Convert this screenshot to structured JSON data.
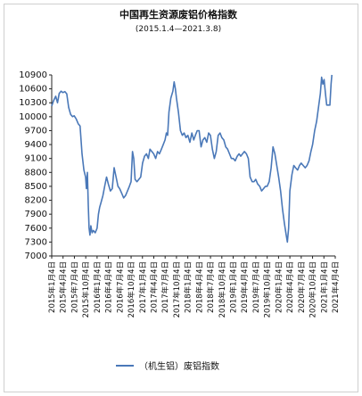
{
  "chart_data": {
    "type": "line",
    "title": "中国再生资源废铝价格指数",
    "subtitle": "(2015.1.4—2021.3.8)",
    "xlabel": "",
    "ylabel": "",
    "ylim": [
      7000,
      10900
    ],
    "yticks": [
      10900,
      10600,
      10300,
      10000,
      9700,
      9400,
      9100,
      8800,
      8500,
      8200,
      7900,
      7600,
      7300,
      7000
    ],
    "x_tick_labels": [
      "2015年1月4日",
      "2015年4月4日",
      "2015年7月4日",
      "2015年10月4日",
      "2016年1月4日",
      "2016年4月4日",
      "2016年7月4日",
      "2016年10月4日",
      "2017年1月4日",
      "2017年4月4日",
      "2017年7月4日",
      "2017年10月4日",
      "2018年1月4日",
      "2018年4月4日",
      "2018年7月4日",
      "2018年10月4日",
      "2019年1月4日",
      "2019年4月4日",
      "2019年7月4日",
      "2019年10月4日",
      "2020年1月4日",
      "2020年4月4日",
      "2020年7月4日",
      "2020年10月4日",
      "2021年1月4日",
      "2021年4月4日"
    ],
    "grid": false,
    "legend_position": "bottom",
    "series": [
      {
        "name": "（机生铝）废铝指数",
        "color": "#4a78b8",
        "points": [
          [
            "2015-01-04",
            10230
          ],
          [
            "2015-01-20",
            10350
          ],
          [
            "2015-02-05",
            10440
          ],
          [
            "2015-02-20",
            10300
          ],
          [
            "2015-03-05",
            10500
          ],
          [
            "2015-03-20",
            10550
          ],
          [
            "2015-04-04",
            10520
          ],
          [
            "2015-04-20",
            10540
          ],
          [
            "2015-05-05",
            10490
          ],
          [
            "2015-05-20",
            10200
          ],
          [
            "2015-06-05",
            10050
          ],
          [
            "2015-06-20",
            10000
          ],
          [
            "2015-07-04",
            10020
          ],
          [
            "2015-07-20",
            9950
          ],
          [
            "2015-08-05",
            9850
          ],
          [
            "2015-08-20",
            9800
          ],
          [
            "2015-09-05",
            9200
          ],
          [
            "2015-09-20",
            8850
          ],
          [
            "2015-10-04",
            8700
          ],
          [
            "2015-10-10",
            8450
          ],
          [
            "2015-10-18",
            8800
          ],
          [
            "2015-10-25",
            8100
          ],
          [
            "2015-11-01",
            7600
          ],
          [
            "2015-11-08",
            7450
          ],
          [
            "2015-11-15",
            7650
          ],
          [
            "2015-11-25",
            7500
          ],
          [
            "2015-12-05",
            7550
          ],
          [
            "2015-12-20",
            7500
          ],
          [
            "2016-01-04",
            7600
          ],
          [
            "2016-01-15",
            7900
          ],
          [
            "2016-01-25",
            8050
          ],
          [
            "2016-02-05",
            8150
          ],
          [
            "2016-02-20",
            8300
          ],
          [
            "2016-03-05",
            8500
          ],
          [
            "2016-03-20",
            8700
          ],
          [
            "2016-04-04",
            8550
          ],
          [
            "2016-04-20",
            8400
          ],
          [
            "2016-05-05",
            8450
          ],
          [
            "2016-05-20",
            8900
          ],
          [
            "2016-06-05",
            8700
          ],
          [
            "2016-06-20",
            8500
          ],
          [
            "2016-07-04",
            8450
          ],
          [
            "2016-07-20",
            8350
          ],
          [
            "2016-08-05",
            8250
          ],
          [
            "2016-08-20",
            8300
          ],
          [
            "2016-09-05",
            8400
          ],
          [
            "2016-09-20",
            8500
          ],
          [
            "2016-10-04",
            8600
          ],
          [
            "2016-10-15",
            9250
          ],
          [
            "2016-10-25",
            9100
          ],
          [
            "2016-11-05",
            8650
          ],
          [
            "2016-11-20",
            8600
          ],
          [
            "2016-12-05",
            8650
          ],
          [
            "2016-12-20",
            8700
          ],
          [
            "2017-01-04",
            9000
          ],
          [
            "2017-01-20",
            9150
          ],
          [
            "2017-02-05",
            9200
          ],
          [
            "2017-02-20",
            9100
          ],
          [
            "2017-03-05",
            9300
          ],
          [
            "2017-03-20",
            9250
          ],
          [
            "2017-04-04",
            9200
          ],
          [
            "2017-04-20",
            9100
          ],
          [
            "2017-05-05",
            9250
          ],
          [
            "2017-05-20",
            9200
          ],
          [
            "2017-06-05",
            9300
          ],
          [
            "2017-06-20",
            9400
          ],
          [
            "2017-07-04",
            9500
          ],
          [
            "2017-07-15",
            9650
          ],
          [
            "2017-07-25",
            9600
          ],
          [
            "2017-08-05",
            10100
          ],
          [
            "2017-08-20",
            10400
          ],
          [
            "2017-09-05",
            10550
          ],
          [
            "2017-09-15",
            10750
          ],
          [
            "2017-09-25",
            10600
          ],
          [
            "2017-10-04",
            10400
          ],
          [
            "2017-10-20",
            10100
          ],
          [
            "2017-11-05",
            9700
          ],
          [
            "2017-11-20",
            9600
          ],
          [
            "2017-12-05",
            9650
          ],
          [
            "2017-12-20",
            9550
          ],
          [
            "2018-01-04",
            9600
          ],
          [
            "2018-01-20",
            9450
          ],
          [
            "2018-02-05",
            9650
          ],
          [
            "2018-02-20",
            9500
          ],
          [
            "2018-03-05",
            9600
          ],
          [
            "2018-03-20",
            9700
          ],
          [
            "2018-04-04",
            9700
          ],
          [
            "2018-04-20",
            9350
          ],
          [
            "2018-05-05",
            9500
          ],
          [
            "2018-05-20",
            9550
          ],
          [
            "2018-06-05",
            9450
          ],
          [
            "2018-06-20",
            9650
          ],
          [
            "2018-07-04",
            9600
          ],
          [
            "2018-07-20",
            9300
          ],
          [
            "2018-08-05",
            9100
          ],
          [
            "2018-08-20",
            9250
          ],
          [
            "2018-09-05",
            9600
          ],
          [
            "2018-09-20",
            9650
          ],
          [
            "2018-10-04",
            9550
          ],
          [
            "2018-10-20",
            9500
          ],
          [
            "2018-11-05",
            9350
          ],
          [
            "2018-11-20",
            9300
          ],
          [
            "2018-12-05",
            9200
          ],
          [
            "2018-12-20",
            9100
          ],
          [
            "2019-01-04",
            9100
          ],
          [
            "2019-01-20",
            9050
          ],
          [
            "2019-02-05",
            9150
          ],
          [
            "2019-02-20",
            9200
          ],
          [
            "2019-03-05",
            9150
          ],
          [
            "2019-03-20",
            9200
          ],
          [
            "2019-04-04",
            9250
          ],
          [
            "2019-04-20",
            9200
          ],
          [
            "2019-05-05",
            9100
          ],
          [
            "2019-05-20",
            8700
          ],
          [
            "2019-06-05",
            8600
          ],
          [
            "2019-06-20",
            8600
          ],
          [
            "2019-07-04",
            8650
          ],
          [
            "2019-07-20",
            8550
          ],
          [
            "2019-08-05",
            8500
          ],
          [
            "2019-08-20",
            8400
          ],
          [
            "2019-09-05",
            8450
          ],
          [
            "2019-09-20",
            8500
          ],
          [
            "2019-10-04",
            8500
          ],
          [
            "2019-10-20",
            8600
          ],
          [
            "2019-11-05",
            8900
          ],
          [
            "2019-11-20",
            9350
          ],
          [
            "2019-12-05",
            9200
          ],
          [
            "2019-12-20",
            8950
          ],
          [
            "2020-01-04",
            8700
          ],
          [
            "2020-01-20",
            8400
          ],
          [
            "2020-02-05",
            8000
          ],
          [
            "2020-02-20",
            7700
          ],
          [
            "2020-03-05",
            7450
          ],
          [
            "2020-03-15",
            7300
          ],
          [
            "2020-03-25",
            7600
          ],
          [
            "2020-04-04",
            8400
          ],
          [
            "2020-04-20",
            8750
          ],
          [
            "2020-05-05",
            8950
          ],
          [
            "2020-05-20",
            8900
          ],
          [
            "2020-06-05",
            8850
          ],
          [
            "2020-06-20",
            8950
          ],
          [
            "2020-07-04",
            9000
          ],
          [
            "2020-07-20",
            8950
          ],
          [
            "2020-08-05",
            8900
          ],
          [
            "2020-08-20",
            8950
          ],
          [
            "2020-09-05",
            9050
          ],
          [
            "2020-09-20",
            9250
          ],
          [
            "2020-10-04",
            9400
          ],
          [
            "2020-10-20",
            9700
          ],
          [
            "2020-11-05",
            9900
          ],
          [
            "2020-11-20",
            10200
          ],
          [
            "2020-12-05",
            10500
          ],
          [
            "2020-12-15",
            10850
          ],
          [
            "2020-12-25",
            10700
          ],
          [
            "2021-01-04",
            10800
          ],
          [
            "2021-01-15",
            10500
          ],
          [
            "2021-01-25",
            10250
          ],
          [
            "2021-02-05",
            10250
          ],
          [
            "2021-02-20",
            10250
          ],
          [
            "2021-03-01",
            10700
          ],
          [
            "2021-03-08",
            10900
          ]
        ]
      }
    ]
  }
}
